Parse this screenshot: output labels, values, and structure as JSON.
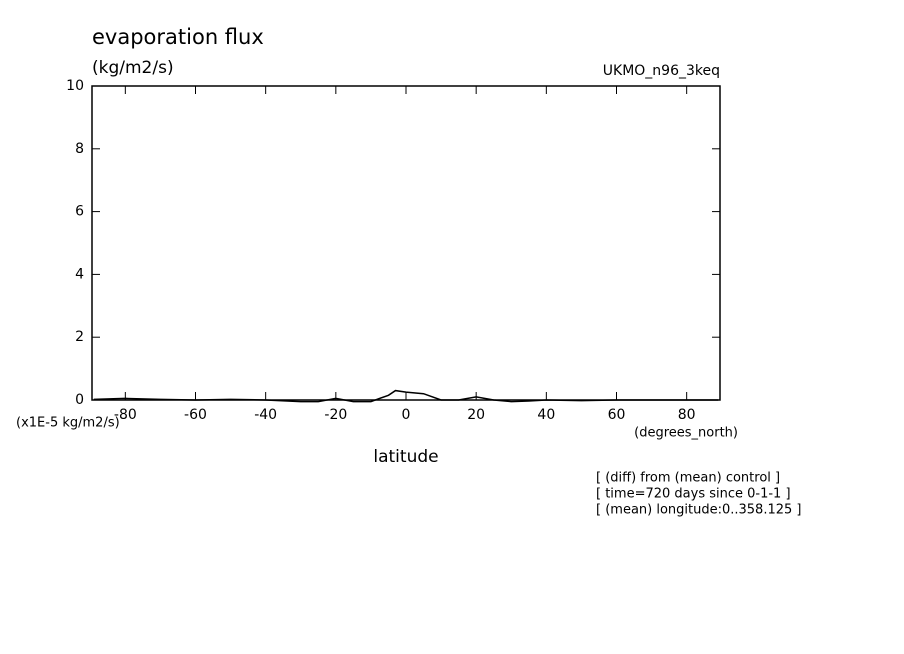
{
  "chart_data": {
    "type": "line",
    "title": "evaporation flux",
    "subtitle": "(kg/m2/s)",
    "dataset_label": "UKMO_n96_3keq",
    "scale_label": "(x1E-5 kg/m2/s)",
    "x_label": "latitude",
    "x_units": "(degrees_north)",
    "notes": [
      "[ (diff) from (mean) control ]",
      "[ time=720 days since 0-1-1 ]",
      "[ (mean) longitude:0..358.125 ]"
    ],
    "x": [
      -89,
      -80,
      -70,
      -60,
      -50,
      -40,
      -30,
      -25,
      -20,
      -15,
      -10,
      -5,
      -3,
      0,
      5,
      10,
      15,
      20,
      25,
      30,
      35,
      40,
      50,
      60,
      70,
      80,
      89
    ],
    "series": [
      {
        "color": "#000000",
        "values": [
          0.02,
          0.05,
          0.02,
          0.0,
          0.02,
          0.0,
          -0.05,
          -0.05,
          0.05,
          -0.05,
          -0.05,
          0.15,
          0.3,
          0.25,
          0.2,
          0.0,
          0.0,
          0.1,
          0.0,
          -0.05,
          -0.03,
          0.0,
          -0.02,
          0.0,
          0.0,
          0.0,
          0.0
        ]
      }
    ],
    "xlim": [
      -89.5,
      89.5
    ],
    "xticks": [
      -80,
      -60,
      -40,
      -20,
      0,
      20,
      40,
      60,
      80
    ],
    "ylim": [
      0,
      10
    ],
    "yticks": [
      0,
      2,
      4,
      6,
      8,
      10
    ]
  }
}
